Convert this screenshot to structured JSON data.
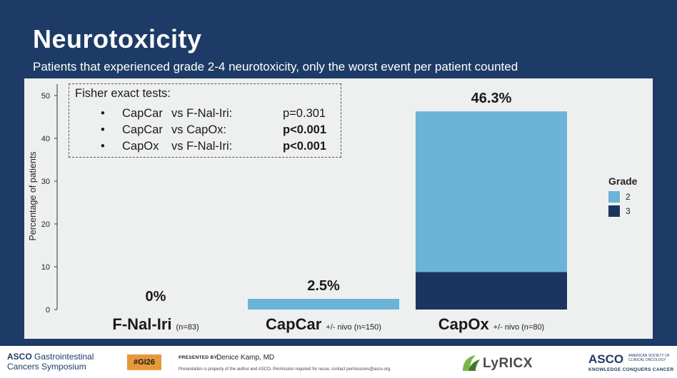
{
  "slide": {
    "title": "Neurotoxicity",
    "subtitle": "Patients that experienced grade 2-4 neurotoxicity, only the worst event per patient counted"
  },
  "fisher": {
    "title": "Fisher exact tests:",
    "rows": [
      {
        "bullet": "•",
        "a": "CapCar",
        "b": "vs F-Nal-Iri:",
        "p": "p=0.301",
        "bold": false
      },
      {
        "bullet": "•",
        "a": "CapCar",
        "b": "vs CapOx:",
        "p": "p<0.001",
        "bold": true
      },
      {
        "bullet": "•",
        "a": "CapOx",
        "b": "vs F-Nal-Iri:",
        "p": "p<0.001",
        "bold": true
      }
    ]
  },
  "chart_data": {
    "type": "bar",
    "stacked": true,
    "ylabel": "Percentage of patients",
    "ylim": [
      0,
      55
    ],
    "yticks": [
      0,
      10,
      20,
      30,
      40,
      50
    ],
    "categories": [
      {
        "name": "F-Nal-Iri",
        "note": "(n=83)"
      },
      {
        "name": "CapCar",
        "note": "+/- nivo (n=150)"
      },
      {
        "name": "CapOx",
        "note": "+/- nivo (n=80)"
      }
    ],
    "series": [
      {
        "name": "3",
        "color": "#1b3560",
        "values": [
          0,
          0,
          8.75
        ]
      },
      {
        "name": "2",
        "color": "#6cb3d8",
        "values": [
          0,
          2.5,
          37.55
        ]
      }
    ],
    "totals_labels": [
      "0%",
      "2.5%",
      "46.3%"
    ],
    "legend": {
      "title": "Grade",
      "position": "right",
      "items": [
        {
          "label": "2",
          "color": "#6cb3d8"
        },
        {
          "label": "3",
          "color": "#1b3560"
        }
      ]
    }
  },
  "footer": {
    "asco_line1": "ASCO",
    "asco_line1b": "Gastrointestinal",
    "asco_line2": "Cancers Symposium",
    "badge": "#GI26",
    "presented_by": "PRESENTED BY:",
    "presenter": "Denice Kamp, MD",
    "disclaimer": "Presentation is property of the author and ASCO. Permission required for reuse; contact permissions@asco.org.",
    "lyricx": "LyRICX",
    "asco_right": "ASCO",
    "asco_right_small": "AMERICAN SOCIETY OF CLINICAL ONCOLOGY",
    "asco_tagline": "KNOWLEDGE CONQUERS CANCER"
  }
}
